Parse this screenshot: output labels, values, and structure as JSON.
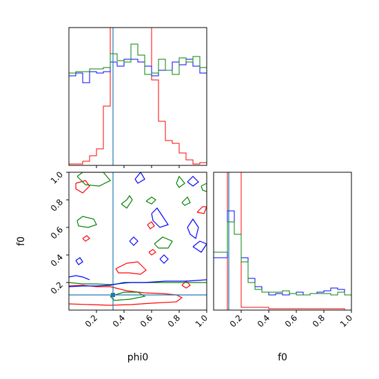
{
  "chart_data": {
    "type": "corner",
    "parameters": [
      "phi0",
      "f0"
    ],
    "ticks": [
      0.2,
      0.4,
      0.6,
      0.8,
      1.0
    ],
    "tick_labels": [
      "0.2",
      "0.4",
      "0.6",
      "0.8",
      "1.0"
    ],
    "range": [
      0,
      1
    ],
    "truth": {
      "phi0": 0.32,
      "f0": 0.11,
      "color": "#1f77b4"
    },
    "colors": {
      "red": "#ff0000",
      "green": "#008000",
      "blue": "#0000ff"
    },
    "hist_bin_edges": [
      0,
      0.05,
      0.1,
      0.15,
      0.2,
      0.25,
      0.3,
      0.35,
      0.4,
      0.45,
      0.5,
      0.55,
      0.6,
      0.65,
      0.7,
      0.75,
      0.8,
      0.85,
      0.9,
      0.95,
      1.0
    ],
    "hist_phi0": [
      {
        "color": "red",
        "values": [
          0.01,
          0.01,
          0.03,
          0.07,
          0.12,
          0.43,
          1.0,
          1.0,
          1.0,
          1.0,
          1.0,
          1.0,
          0.62,
          0.32,
          0.18,
          0.16,
          0.09,
          0.04,
          0.01,
          0.02
        ]
      },
      {
        "color": "blue",
        "values": [
          0.65,
          0.67,
          0.6,
          0.68,
          0.67,
          0.68,
          0.75,
          0.72,
          0.77,
          0.77,
          0.75,
          0.72,
          0.65,
          0.69,
          0.69,
          0.75,
          0.73,
          0.77,
          0.72,
          0.67
        ]
      },
      {
        "color": "green",
        "values": [
          0.67,
          0.68,
          0.68,
          0.7,
          0.7,
          0.71,
          0.81,
          0.76,
          0.75,
          0.88,
          0.8,
          0.66,
          0.67,
          0.77,
          0.69,
          0.66,
          0.78,
          0.75,
          0.79,
          0.71
        ]
      }
    ],
    "hist_f0": [
      {
        "color": "red",
        "values": [
          0.0,
          0.0,
          1.0,
          1.0,
          0.02,
          0.02,
          0.02,
          0.02,
          0.01,
          0.01,
          0.01,
          0.01,
          0.01,
          0.01,
          0.01,
          0.01,
          0.01,
          0.01,
          0.01,
          0.0
        ]
      },
      {
        "color": "blue",
        "values": [
          0.38,
          0.38,
          0.72,
          0.55,
          0.38,
          0.23,
          0.17,
          0.13,
          0.11,
          0.12,
          0.11,
          0.12,
          0.13,
          0.11,
          0.12,
          0.13,
          0.14,
          0.16,
          0.15,
          0.11
        ]
      },
      {
        "color": "green",
        "values": [
          0.42,
          0.42,
          0.64,
          0.55,
          0.35,
          0.2,
          0.15,
          0.13,
          0.13,
          0.13,
          0.14,
          0.12,
          0.11,
          0.11,
          0.12,
          0.12,
          0.12,
          0.11,
          0.13,
          0.11
        ]
      }
    ],
    "contours": [
      {
        "color": "red",
        "paths": [
          [
            [
              0.0,
              0.175
            ],
            [
              0.1,
              0.18
            ],
            [
              0.2,
              0.17
            ],
            [
              0.3,
              0.17
            ],
            [
              0.42,
              0.14
            ],
            [
              0.55,
              0.125
            ],
            [
              0.68,
              0.12
            ],
            [
              0.78,
              0.11
            ],
            [
              0.82,
              0.09
            ],
            [
              0.78,
              0.06
            ],
            [
              0.6,
              0.05
            ],
            [
              0.45,
              0.04
            ],
            [
              0.3,
              0.035
            ],
            [
              0.15,
              0.04
            ],
            [
              0.0,
              0.045
            ]
          ],
          [
            [
              0.34,
              0.3
            ],
            [
              0.42,
              0.34
            ],
            [
              0.5,
              0.35
            ],
            [
              0.53,
              0.32
            ],
            [
              0.56,
              0.29
            ],
            [
              0.52,
              0.26
            ],
            [
              0.44,
              0.27
            ],
            [
              0.36,
              0.27
            ],
            [
              0.34,
              0.3
            ]
          ],
          [
            [
              0.05,
              0.92
            ],
            [
              0.12,
              0.94
            ],
            [
              0.15,
              0.9
            ],
            [
              0.1,
              0.85
            ],
            [
              0.05,
              0.88
            ],
            [
              0.05,
              0.92
            ]
          ],
          [
            [
              0.57,
              0.62
            ],
            [
              0.6,
              0.64
            ],
            [
              0.62,
              0.61
            ],
            [
              0.59,
              0.59
            ],
            [
              0.57,
              0.62
            ]
          ],
          [
            [
              0.1,
              0.52
            ],
            [
              0.13,
              0.54
            ],
            [
              0.15,
              0.52
            ],
            [
              0.12,
              0.5
            ],
            [
              0.1,
              0.52
            ]
          ],
          [
            [
              0.58,
              0.42
            ],
            [
              0.61,
              0.44
            ],
            [
              0.63,
              0.42
            ],
            [
              0.6,
              0.4
            ],
            [
              0.58,
              0.42
            ]
          ],
          [
            [
              0.93,
              0.71
            ],
            [
              0.97,
              0.75
            ],
            [
              1.0,
              0.75
            ],
            [
              0.98,
              0.7
            ],
            [
              0.93,
              0.71
            ]
          ],
          [
            [
              0.82,
              0.18
            ],
            [
              0.85,
              0.21
            ],
            [
              0.88,
              0.18
            ],
            [
              0.85,
              0.16
            ],
            [
              0.82,
              0.18
            ]
          ]
        ]
      },
      {
        "color": "green",
        "paths": [
          [
            [
              0.0,
              0.2
            ],
            [
              0.1,
              0.19
            ],
            [
              0.2,
              0.19
            ],
            [
              0.3,
              0.185
            ],
            [
              0.45,
              0.2
            ],
            [
              0.6,
              0.2
            ],
            [
              0.75,
              0.2
            ],
            [
              0.9,
              0.2
            ],
            [
              1.0,
              0.2
            ]
          ],
          [
            [
              0.3,
              0.1
            ],
            [
              0.4,
              0.13
            ],
            [
              0.5,
              0.13
            ],
            [
              0.55,
              0.1
            ],
            [
              0.45,
              0.08
            ],
            [
              0.33,
              0.07
            ],
            [
              0.3,
              0.1
            ]
          ],
          [
            [
              0.06,
              0.97
            ],
            [
              0.1,
              1.0
            ],
            [
              0.25,
              1.0
            ],
            [
              0.3,
              0.94
            ],
            [
              0.22,
              0.9
            ],
            [
              0.12,
              0.91
            ],
            [
              0.06,
              0.97
            ]
          ],
          [
            [
              0.38,
              0.77
            ],
            [
              0.42,
              0.8
            ],
            [
              0.44,
              0.83
            ],
            [
              0.46,
              0.8
            ],
            [
              0.42,
              0.74
            ],
            [
              0.38,
              0.77
            ]
          ],
          [
            [
              0.06,
              0.65
            ],
            [
              0.1,
              0.68
            ],
            [
              0.18,
              0.66
            ],
            [
              0.2,
              0.62
            ],
            [
              0.14,
              0.6
            ],
            [
              0.07,
              0.61
            ],
            [
              0.06,
              0.65
            ]
          ],
          [
            [
              0.62,
              0.48
            ],
            [
              0.68,
              0.53
            ],
            [
              0.75,
              0.5
            ],
            [
              0.72,
              0.45
            ],
            [
              0.65,
              0.45
            ],
            [
              0.62,
              0.48
            ]
          ],
          [
            [
              0.78,
              0.92
            ],
            [
              0.8,
              0.97
            ],
            [
              0.84,
              0.92
            ],
            [
              0.8,
              0.89
            ],
            [
              0.78,
              0.92
            ]
          ],
          [
            [
              0.82,
              0.78
            ],
            [
              0.86,
              0.82
            ],
            [
              0.88,
              0.78
            ],
            [
              0.84,
              0.76
            ],
            [
              0.82,
              0.78
            ]
          ],
          [
            [
              0.96,
              0.9
            ],
            [
              1.0,
              0.92
            ],
            [
              1.0,
              0.86
            ],
            [
              0.97,
              0.87
            ],
            [
              0.96,
              0.9
            ]
          ],
          [
            [
              0.56,
              0.79
            ],
            [
              0.6,
              0.82
            ],
            [
              0.63,
              0.8
            ],
            [
              0.6,
              0.77
            ],
            [
              0.56,
              0.79
            ]
          ]
        ]
      },
      {
        "color": "blue",
        "paths": [
          [
            [
              0.0,
              0.17
            ],
            [
              0.1,
              0.175
            ],
            [
              0.2,
              0.175
            ],
            [
              0.3,
              0.18
            ],
            [
              0.4,
              0.2
            ],
            [
              0.55,
              0.2
            ],
            [
              0.7,
              0.21
            ],
            [
              0.85,
              0.21
            ],
            [
              1.0,
              0.22
            ]
          ],
          [
            [
              0.0,
              0.24
            ],
            [
              0.05,
              0.25
            ],
            [
              0.1,
              0.24
            ],
            [
              0.15,
              0.22
            ]
          ],
          [
            [
              0.48,
              0.95
            ],
            [
              0.52,
              1.0
            ],
            [
              0.55,
              0.95
            ],
            [
              0.5,
              0.92
            ],
            [
              0.48,
              0.95
            ]
          ],
          [
            [
              0.6,
              0.7
            ],
            [
              0.64,
              0.74
            ],
            [
              0.68,
              0.68
            ],
            [
              0.72,
              0.62
            ],
            [
              0.66,
              0.6
            ],
            [
              0.61,
              0.65
            ],
            [
              0.6,
              0.7
            ]
          ],
          [
            [
              0.44,
              0.5
            ],
            [
              0.47,
              0.53
            ],
            [
              0.5,
              0.5
            ],
            [
              0.47,
              0.47
            ],
            [
              0.44,
              0.5
            ]
          ],
          [
            [
              0.05,
              0.36
            ],
            [
              0.08,
              0.38
            ],
            [
              0.1,
              0.35
            ],
            [
              0.07,
              0.33
            ],
            [
              0.05,
              0.36
            ]
          ],
          [
            [
              0.86,
              0.6
            ],
            [
              0.9,
              0.66
            ],
            [
              0.94,
              0.6
            ],
            [
              0.92,
              0.52
            ],
            [
              0.88,
              0.55
            ],
            [
              0.86,
              0.6
            ]
          ],
          [
            [
              0.9,
              0.46
            ],
            [
              0.95,
              0.5
            ],
            [
              1.0,
              0.48
            ],
            [
              0.96,
              0.42
            ],
            [
              0.9,
              0.46
            ]
          ],
          [
            [
              0.86,
              0.93
            ],
            [
              0.9,
              0.97
            ],
            [
              0.94,
              0.93
            ],
            [
              0.9,
              0.9
            ],
            [
              0.86,
              0.93
            ]
          ],
          [
            [
              0.66,
              0.37
            ],
            [
              0.69,
              0.4
            ],
            [
              0.72,
              0.37
            ],
            [
              0.69,
              0.34
            ],
            [
              0.66,
              0.37
            ]
          ]
        ]
      }
    ]
  }
}
